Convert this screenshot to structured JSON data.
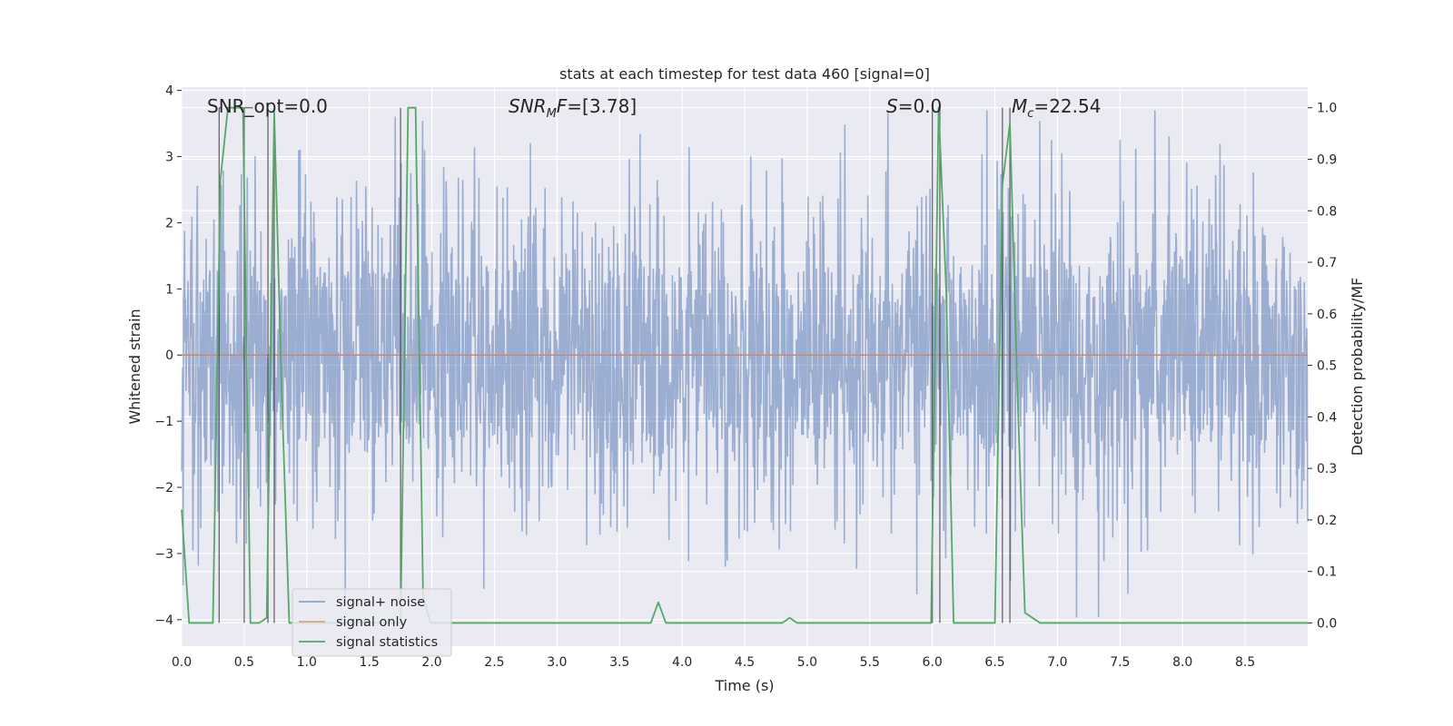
{
  "chart_data": {
    "type": "line",
    "title": "stats at each timestep for test data 460 [signal=0]",
    "xlabel": "Time (s)",
    "ylabel": "Whitened strain",
    "y2label": "Detection probability/MF",
    "xlim": [
      0.0,
      9.0
    ],
    "ylim": [
      -4.4,
      4.05
    ],
    "y2lim": [
      -0.045,
      1.04
    ],
    "xticks": [
      "0.0",
      "0.5",
      "1.0",
      "1.5",
      "2.0",
      "2.5",
      "3.0",
      "3.5",
      "4.0",
      "4.5",
      "5.0",
      "5.5",
      "6.0",
      "6.5",
      "7.0",
      "7.5",
      "8.0",
      "8.5"
    ],
    "yticks": [
      "4",
      "3",
      "2",
      "1",
      "0",
      "−1",
      "−2",
      "−3",
      "−4"
    ],
    "y2ticks": [
      "1.0",
      "0.9",
      "0.8",
      "0.7",
      "0.6",
      "0.5",
      "0.4",
      "0.3",
      "0.2",
      "0.1",
      "0.0"
    ],
    "annotations": {
      "snr_opt": {
        "label": "SNR_opt=",
        "value": "0.0"
      },
      "snr_mf": {
        "sym": "SNR",
        "sub": "M",
        "after": "F=",
        "value": "[3.78]"
      },
      "s": {
        "sym": "S",
        "after": "=",
        "value": "0.0"
      },
      "mc": {
        "sym": "M",
        "sub": "c",
        "after": "=",
        "value": "22.54"
      }
    },
    "noise": {
      "description": "whitened strain of signal+noise; dense noise, envelope roughly within ±1.4 with spikes to about ±3.7",
      "core_amplitude": 1.35,
      "spike_max": 3.7,
      "spike_min": -4.1
    },
    "series": [
      {
        "name": "signal+ noise",
        "color": "#4c72b0",
        "axis": "left"
      },
      {
        "name": "signal only",
        "color": "#dd8452",
        "axis": "left",
        "x": [
          0.0,
          9.0
        ],
        "y": [
          0.0,
          0.0
        ]
      },
      {
        "name": "signal statistics",
        "color": "#55a868",
        "axis": "right",
        "x": [
          0.0,
          0.06,
          0.25,
          0.31,
          0.37,
          0.49,
          0.55,
          0.62,
          0.68,
          0.74,
          0.8,
          0.86,
          0.92,
          1.0,
          1.7,
          1.75,
          1.81,
          1.87,
          1.93,
          1.99,
          2.05,
          2.5,
          3.5,
          3.75,
          3.81,
          3.87,
          3.93,
          4.0,
          4.5,
          4.8,
          4.86,
          4.92,
          5.5,
          5.99,
          6.05,
          6.11,
          6.17,
          6.23,
          6.5,
          6.56,
          6.62,
          6.68,
          6.74,
          6.8,
          6.86,
          6.95,
          7.5,
          8.0,
          8.5,
          9.0
        ],
        "y": [
          0.22,
          0.0,
          0.0,
          0.86,
          1.0,
          1.0,
          0.0,
          0.0,
          0.01,
          0.99,
          0.45,
          0.0,
          0.0,
          0.0,
          0.0,
          0.0,
          1.0,
          1.0,
          0.05,
          0.0,
          0.0,
          0.0,
          0.0,
          0.0,
          0.04,
          0.0,
          0.0,
          0.0,
          0.0,
          0.0,
          0.01,
          0.0,
          0.0,
          0.0,
          1.0,
          0.65,
          0.0,
          0.0,
          0.0,
          0.85,
          0.97,
          0.45,
          0.02,
          0.01,
          0.0,
          0.0,
          0.0,
          0.0,
          0.0,
          0.0
        ]
      }
    ],
    "vertical_markers": [
      0.3,
      0.5,
      0.69,
      0.74,
      1.75,
      6.0,
      6.06,
      6.56,
      6.62
    ],
    "h_markers": [
      {
        "x0": 0.5,
        "x1": 0.57,
        "y": 1.0
      },
      {
        "x0": 0.3,
        "x1": 0.32,
        "y": 1.0
      }
    ],
    "legend": {
      "position": "lower-left",
      "entries": [
        "signal+ noise",
        "signal only",
        "signal statistics"
      ]
    }
  }
}
